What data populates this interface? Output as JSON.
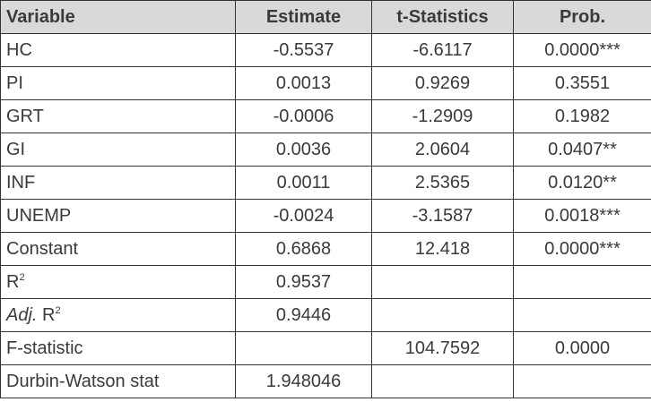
{
  "table": {
    "header": [
      "Variable",
      "Estimate",
      "t-Statistics",
      "Prob."
    ],
    "rows": [
      [
        "HC",
        "-0.5537",
        "-6.6117",
        "0.0000***"
      ],
      [
        "PI",
        "0.0013",
        "0.9269",
        "0.3551"
      ],
      [
        "GRT",
        "-0.0006",
        "-1.2909",
        "0.1982"
      ],
      [
        "GI",
        "0.0036",
        "2.0604",
        "0.0407**"
      ],
      [
        "INF",
        "0.0011",
        "2.5365",
        "0.0120**"
      ],
      [
        "UNEMP",
        "-0.0024",
        "-3.1587",
        "0.0018***"
      ],
      [
        "Constant",
        "0.6868",
        "12.418",
        "0.0000***"
      ],
      [
        {
          "text": "R",
          "sup": "2"
        },
        "0.9537",
        null,
        null
      ],
      [
        {
          "italic": "Adj.",
          "text": " R",
          "sup": "2"
        },
        "0.9446",
        null,
        null
      ],
      [
        "F-statistic",
        null,
        "104.7592",
        "0.0000"
      ],
      [
        "Durbin-Watson stat",
        "1.948046",
        null,
        null
      ]
    ]
  }
}
